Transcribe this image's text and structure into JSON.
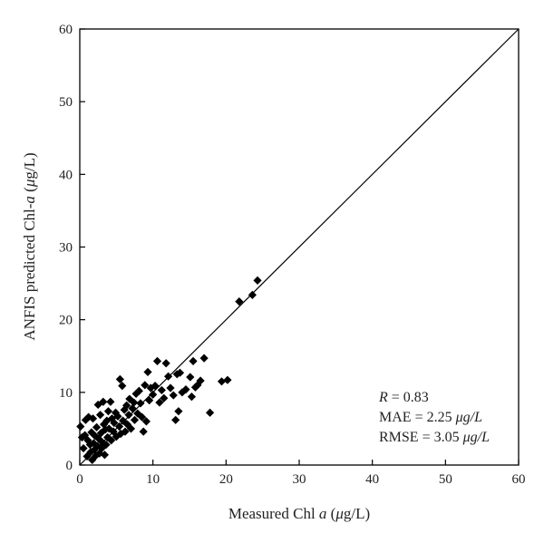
{
  "chart_data": {
    "type": "scatter",
    "title": "",
    "xlabel": {
      "prefix": "Measured Chl ",
      "italic": "a",
      "suffix": " (",
      "mu": "μ",
      "unit": "g/L)"
    },
    "ylabel": {
      "prefix": "ANFIS predicted Chl-",
      "italic": "a",
      "suffix": " (",
      "mu": "μ",
      "unit": "g/L)"
    },
    "xlim": [
      0,
      60
    ],
    "ylim": [
      0,
      60
    ],
    "xticks": [
      "0",
      "10",
      "20",
      "30",
      "40",
      "50",
      "60"
    ],
    "yticks": [
      "0",
      "10",
      "20",
      "30",
      "40",
      "50",
      "60"
    ],
    "grid": false,
    "reference_line": {
      "type": "1:1",
      "from": [
        0,
        0
      ],
      "to": [
        60,
        60
      ]
    },
    "stats": [
      {
        "label": "R",
        "value": " = 0.83",
        "unit": ""
      },
      {
        "label": "MAE",
        "value": " = 2.25 ",
        "unit": "μg/L"
      },
      {
        "label": "RMSE",
        "value": " = 3.05 ",
        "unit": "μg/L"
      }
    ],
    "series": [
      {
        "marker": "diamond",
        "color": "#000000",
        "points": [
          [
            0.1,
            5.3
          ],
          [
            0.3,
            3.8
          ],
          [
            0.5,
            2.3
          ],
          [
            0.7,
            4.1
          ],
          [
            0.8,
            6.2
          ],
          [
            1.0,
            1.2
          ],
          [
            1.1,
            3.4
          ],
          [
            1.2,
            6.6
          ],
          [
            1.4,
            2.8
          ],
          [
            1.5,
            1.8
          ],
          [
            1.6,
            4.5
          ],
          [
            1.7,
            0.7
          ],
          [
            1.8,
            6.4
          ],
          [
            1.9,
            3.0
          ],
          [
            2.0,
            2.1
          ],
          [
            2.1,
            4.0
          ],
          [
            2.2,
            1.3
          ],
          [
            2.3,
            5.2
          ],
          [
            2.4,
            2.6
          ],
          [
            2.5,
            8.3
          ],
          [
            2.6,
            3.6
          ],
          [
            2.7,
            1.6
          ],
          [
            2.8,
            6.9
          ],
          [
            2.9,
            4.4
          ],
          [
            3.0,
            2.3
          ],
          [
            3.1,
            3.1
          ],
          [
            3.2,
            8.7
          ],
          [
            3.3,
            5.6
          ],
          [
            3.4,
            1.4
          ],
          [
            3.5,
            4.9
          ],
          [
            3.6,
            2.8
          ],
          [
            3.7,
            6.1
          ],
          [
            3.8,
            3.8
          ],
          [
            3.9,
            7.4
          ],
          [
            4.0,
            5.0
          ],
          [
            4.2,
            8.7
          ],
          [
            4.3,
            3.4
          ],
          [
            4.4,
            6.4
          ],
          [
            4.6,
            4.6
          ],
          [
            4.7,
            5.8
          ],
          [
            4.9,
            7.2
          ],
          [
            5.0,
            3.9
          ],
          [
            5.2,
            6.7
          ],
          [
            5.4,
            5.3
          ],
          [
            5.5,
            11.8
          ],
          [
            5.6,
            4.3
          ],
          [
            5.8,
            10.9
          ],
          [
            5.9,
            6.1
          ],
          [
            6.1,
            7.6
          ],
          [
            6.2,
            4.6
          ],
          [
            6.4,
            8.2
          ],
          [
            6.5,
            5.6
          ],
          [
            6.7,
            6.9
          ],
          [
            6.8,
            9.1
          ],
          [
            7.0,
            5.0
          ],
          [
            7.2,
            7.8
          ],
          [
            7.4,
            8.6
          ],
          [
            7.5,
            6.2
          ],
          [
            7.7,
            9.8
          ],
          [
            7.9,
            7.1
          ],
          [
            8.1,
            10.2
          ],
          [
            8.3,
            8.5
          ],
          [
            8.5,
            6.6
          ],
          [
            8.7,
            4.6
          ],
          [
            8.9,
            11.0
          ],
          [
            9.1,
            6.0
          ],
          [
            9.3,
            12.8
          ],
          [
            9.5,
            8.9
          ],
          [
            9.7,
            10.6
          ],
          [
            10.0,
            9.7
          ],
          [
            10.3,
            10.9
          ],
          [
            10.6,
            14.3
          ],
          [
            10.9,
            8.6
          ],
          [
            11.2,
            10.3
          ],
          [
            11.5,
            9.2
          ],
          [
            11.8,
            14.0
          ],
          [
            12.1,
            12.2
          ],
          [
            12.4,
            10.6
          ],
          [
            12.8,
            9.6
          ],
          [
            13.1,
            6.2
          ],
          [
            13.3,
            12.5
          ],
          [
            13.5,
            7.4
          ],
          [
            13.7,
            12.7
          ],
          [
            14.0,
            10.0
          ],
          [
            14.5,
            10.4
          ],
          [
            15.1,
            12.1
          ],
          [
            15.3,
            9.4
          ],
          [
            15.5,
            14.3
          ],
          [
            15.8,
            10.7
          ],
          [
            16.1,
            11.0
          ],
          [
            16.5,
            11.6
          ],
          [
            17.0,
            14.7
          ],
          [
            17.8,
            7.2
          ],
          [
            19.4,
            11.5
          ],
          [
            20.2,
            11.7
          ],
          [
            21.8,
            22.5
          ],
          [
            23.6,
            23.4
          ],
          [
            24.3,
            25.4
          ]
        ]
      }
    ]
  }
}
